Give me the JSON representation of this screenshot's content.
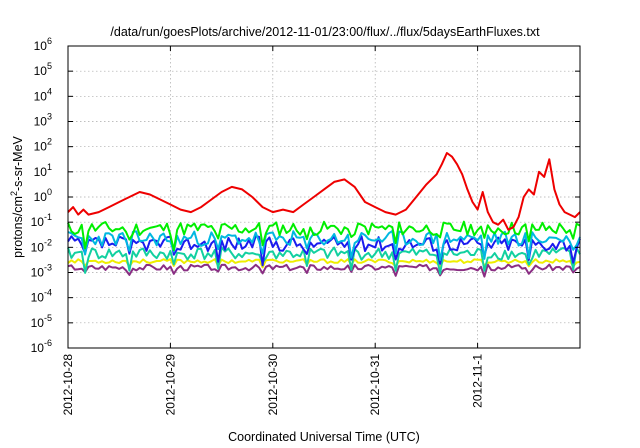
{
  "chart_data": {
    "type": "line",
    "title": "/data/run/goesPlots/archive/2012-11-01/23:00/flux/../flux/5daysEarthFluxes.txt",
    "xlabel": "Coordinated Universal Time (UTC)",
    "ylabel": {
      "base": "protons/cm",
      "sup": "2",
      "rest": "-s-sr-MeV"
    },
    "yscale": "log",
    "ylim_exponents": [
      -6,
      6
    ],
    "y_ticks": [
      {
        "base": "10",
        "exp": "-6",
        "e": -6
      },
      {
        "base": "10",
        "exp": "-5",
        "e": -5
      },
      {
        "base": "10",
        "exp": "-4",
        "e": -4
      },
      {
        "base": "10",
        "exp": "-3",
        "e": -3
      },
      {
        "base": "10",
        "exp": "-2",
        "e": -2
      },
      {
        "base": "10",
        "exp": "-1",
        "e": -1
      },
      {
        "base": "10",
        "exp": "0",
        "e": 0
      },
      {
        "base": "10",
        "exp": "1",
        "e": 1
      },
      {
        "base": "10",
        "exp": "2",
        "e": 2
      },
      {
        "base": "10",
        "exp": "3",
        "e": 3
      },
      {
        "base": "10",
        "exp": "4",
        "e": 4
      },
      {
        "base": "10",
        "exp": "5",
        "e": 5
      },
      {
        "base": "10",
        "exp": "6",
        "e": 6
      }
    ],
    "x_range_days": [
      0,
      5.0
    ],
    "x_ticks": [
      {
        "label": "2012-10-28",
        "day": 0
      },
      {
        "label": "2012-10-29",
        "day": 1
      },
      {
        "label": "2012-10-30",
        "day": 2
      },
      {
        "label": "2012-10-31",
        "day": 3
      },
      {
        "label": "2012-11-1",
        "day": 4
      }
    ],
    "grid": true,
    "legend": "none",
    "series": [
      {
        "color": "#ee0000",
        "x": [
          0.0,
          0.05,
          0.1,
          0.15,
          0.2,
          0.3,
          0.4,
          0.5,
          0.6,
          0.7,
          0.8,
          0.9,
          1.0,
          1.1,
          1.2,
          1.3,
          1.4,
          1.5,
          1.6,
          1.7,
          1.8,
          1.9,
          2.0,
          2.1,
          2.2,
          2.3,
          2.4,
          2.5,
          2.6,
          2.7,
          2.8,
          2.9,
          3.0,
          3.1,
          3.2,
          3.3,
          3.4,
          3.5,
          3.6,
          3.65,
          3.7,
          3.75,
          3.8,
          3.85,
          3.9,
          3.95,
          4.0,
          4.05,
          4.1,
          4.15,
          4.2,
          4.25,
          4.3,
          4.35,
          4.4,
          4.45,
          4.5,
          4.55,
          4.6,
          4.65,
          4.7,
          4.75,
          4.8,
          4.85,
          4.9,
          4.95,
          5.0
        ],
        "y_log10": [
          -0.6,
          -0.4,
          -0.7,
          -0.5,
          -0.7,
          -0.6,
          -0.4,
          -0.2,
          0.0,
          0.2,
          0.1,
          -0.1,
          -0.3,
          -0.5,
          -0.6,
          -0.4,
          -0.1,
          0.2,
          0.4,
          0.3,
          0.0,
          -0.4,
          -0.6,
          -0.5,
          -0.6,
          -0.3,
          0.0,
          0.3,
          0.6,
          0.7,
          0.4,
          -0.2,
          -0.4,
          -0.6,
          -0.7,
          -0.5,
          0.0,
          0.5,
          0.9,
          1.3,
          1.75,
          1.6,
          1.3,
          0.9,
          0.3,
          -0.2,
          -0.5,
          0.2,
          -0.6,
          -1.0,
          -1.1,
          -0.9,
          -1.3,
          -1.2,
          -0.8,
          0.0,
          0.3,
          0.1,
          1.0,
          0.8,
          1.5,
          0.3,
          -0.3,
          -0.6,
          -0.7,
          -0.8,
          -0.6
        ]
      },
      {
        "color": "#00ee00",
        "noise_seed": 11,
        "base_log10": -1.25,
        "amp": 0.28
      },
      {
        "color": "#00b8e0",
        "noise_seed": 23,
        "base_log10": -1.65,
        "amp": 0.3
      },
      {
        "color": "#1b1bee",
        "noise_seed": 37,
        "base_log10": -1.85,
        "amp": 0.3
      },
      {
        "color": "#12d0a0",
        "noise_seed": 41,
        "base_log10": -2.25,
        "amp": 0.25
      },
      {
        "color": "#eeee00",
        "noise_seed": 53,
        "base_log10": -2.55,
        "amp": 0.08
      },
      {
        "color": "#8a2e83",
        "noise_seed": 67,
        "base_log10": -2.8,
        "amp": 0.12
      }
    ]
  }
}
